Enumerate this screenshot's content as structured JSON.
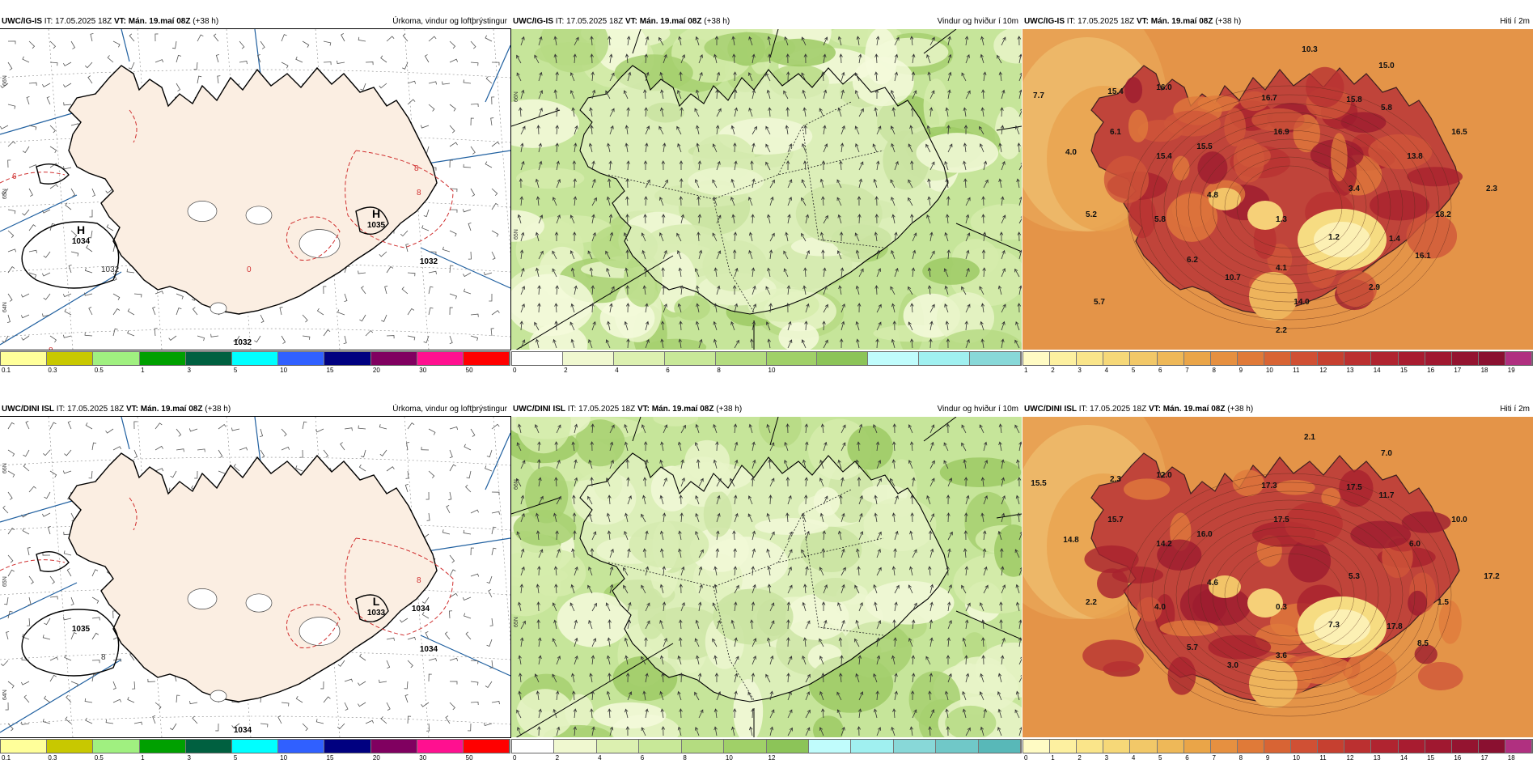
{
  "rows": [
    {
      "id": "igis",
      "panels": [
        {
          "model": "UWC/IG-IS",
          "it_label": "IT:",
          "it": "17.05.2025 18Z",
          "vt_label": "VT:",
          "vt": "Mán. 19.maí 08Z",
          "lead": "(+38 h)",
          "title": "Úrkoma, vindur og loftþrýstingur",
          "colorbar": [
            "#ffff9a",
            "#c8c800",
            "#a0f080",
            "#00a000",
            "#006040",
            "#00ffff",
            "#3060ff",
            "#000080",
            "#800060",
            "#ff1090",
            "#ff0000"
          ],
          "ticks": [
            "0.1",
            "0.3",
            "0.5",
            "1",
            "3",
            "5",
            "10",
            "15",
            "20",
            "30",
            "50"
          ],
          "pressure_labels": [
            {
              "symbol": "H",
              "value": "1034"
            },
            {
              "symbol": "H",
              "value": "1035"
            },
            {
              "symbol": "",
              "value": "1032"
            },
            {
              "symbol": "",
              "value": "1032"
            }
          ],
          "contour_labels": [
            "1032",
            "8",
            "8",
            "6",
            "8",
            "0"
          ],
          "lat_labels": [
            "66N",
            "65N",
            "64N"
          ]
        },
        {
          "model": "UWC/IG-IS",
          "it_label": "IT:",
          "it": "17.05.2025 18Z",
          "vt_label": "VT:",
          "vt": "Mán. 19.maí 08Z",
          "lead": "(+38 h)",
          "title": "Vindur og hviður í 10m",
          "colorbar": [
            "#ffffff",
            "#f0f8d0",
            "#dcf0b0",
            "#c8e898",
            "#b4dc80",
            "#a0d068",
            "#8cc458",
            "#c0fcfc",
            "#a0f0f0",
            "#88d8d8"
          ],
          "ticks": [
            "0",
            "2",
            "4",
            "6",
            "8",
            "10"
          ],
          "lat_labels": [
            "66N",
            "65N"
          ]
        },
        {
          "model": "UWC/IG-IS",
          "it_label": "IT:",
          "it": "17.05.2025 18Z",
          "vt_label": "VT:",
          "vt": "Mán. 19.maí 08Z",
          "lead": "(+38 h)",
          "title": "Hiti í 2m",
          "colorbar": [
            "#fffbc4",
            "#fdf0a0",
            "#fae58a",
            "#f6d878",
            "#f2c868",
            "#eeb858",
            "#eaa548",
            "#e69040",
            "#e07a38",
            "#d86434",
            "#d05034",
            "#c64030",
            "#bb3030",
            "#b02430",
            "#a81c30",
            "#a01830",
            "#941430",
            "#8a1030",
            "#b03080"
          ],
          "ticks": [
            "1",
            "2",
            "3",
            "4",
            "5",
            "6",
            "7",
            "8",
            "9",
            "10",
            "11",
            "12",
            "13",
            "14",
            "15",
            "16",
            "17",
            "18",
            "19"
          ],
          "temp_labels": [
            "10.3",
            "15.0",
            "7.7",
            "15.4",
            "16.0",
            "16.7",
            "15.8",
            "5.8",
            "6.1",
            "16.9",
            "15.5",
            "4.0",
            "15.4",
            "13.8",
            "16.5",
            "2.3",
            "4.8",
            "3.4",
            "5.2",
            "5.8",
            "1.3",
            "18.2",
            "1.2",
            "1.4",
            "6.2",
            "4.1",
            "16.1",
            "10.7",
            "2.9",
            "5.7",
            "14.0",
            "2.2"
          ]
        }
      ]
    },
    {
      "id": "dini",
      "panels": [
        {
          "model": "UWC/DINI ISL",
          "it_label": "IT:",
          "it": "17.05.2025 18Z",
          "vt_label": "VT:",
          "vt": "Mán. 19.maí 08Z",
          "lead": "(+38 h)",
          "title": "Úrkoma, vindur og loftþrýstingur",
          "colorbar": [
            "#ffff9a",
            "#c8c800",
            "#a0f080",
            "#00a000",
            "#006040",
            "#00ffff",
            "#3060ff",
            "#000080",
            "#800060",
            "#ff1090",
            "#ff0000"
          ],
          "ticks": [
            "0.1",
            "0.3",
            "0.5",
            "1",
            "3",
            "5",
            "10",
            "15",
            "20",
            "30",
            "50"
          ],
          "pressure_labels": [
            {
              "symbol": "",
              "value": "1035"
            },
            {
              "symbol": "L",
              "value": "1033"
            },
            {
              "symbol": "",
              "value": "1034"
            },
            {
              "symbol": "",
              "value": "1034"
            },
            {
              "symbol": "",
              "value": "1034"
            }
          ],
          "contour_labels": [
            "8",
            "8"
          ],
          "lat_labels": [
            "66N",
            "65N",
            "64N"
          ]
        },
        {
          "model": "UWC/DINI ISL",
          "it_label": "IT:",
          "it": "17.05.2025 18Z",
          "vt_label": "VT:",
          "vt": "Mán. 19.maí 08Z",
          "lead": "(+38 h)",
          "title": "Vindur og hviður í 10m",
          "colorbar": [
            "#ffffff",
            "#f0f8d0",
            "#dcf0b0",
            "#c8e898",
            "#b4dc80",
            "#a0d068",
            "#8cc458",
            "#c0fcfc",
            "#a0f0f0",
            "#88d8d8",
            "#70c8c8",
            "#58b8b8"
          ],
          "ticks": [
            "0",
            "2",
            "4",
            "6",
            "8",
            "10",
            "12"
          ],
          "lat_labels": [
            "66N",
            "65N"
          ]
        },
        {
          "model": "UWC/DINI ISL",
          "it_label": "IT:",
          "it": "17.05.2025 18Z",
          "vt_label": "VT:",
          "vt": "Mán. 19.maí 08Z",
          "lead": "(+38 h)",
          "title": "Hiti í 2m",
          "colorbar": [
            "#fffbc4",
            "#fdf0a0",
            "#fae58a",
            "#f6d878",
            "#f2c868",
            "#eeb858",
            "#eaa548",
            "#e69040",
            "#e07a38",
            "#d86434",
            "#d05034",
            "#c64030",
            "#bb3030",
            "#b02430",
            "#a81c30",
            "#a01830",
            "#941430",
            "#8a1030",
            "#b03080"
          ],
          "ticks": [
            "0",
            "1",
            "2",
            "3",
            "4",
            "5",
            "6",
            "7",
            "8",
            "9",
            "10",
            "11",
            "12",
            "13",
            "14",
            "15",
            "16",
            "17",
            "18"
          ],
          "temp_labels": [
            "2.1",
            "7.0",
            "15.5",
            "2.3",
            "12.0",
            "17.3",
            "17.5",
            "11.7",
            "15.7",
            "17.5",
            "16.0",
            "14.8",
            "14.2",
            "6.0",
            "10.0",
            "17.2",
            "4.6",
            "5.3",
            "2.2",
            "4.0",
            "0.3",
            "1.5",
            "7.3",
            "17.8",
            "5.7",
            "3.6",
            "8.5",
            "3.0"
          ]
        }
      ]
    }
  ]
}
